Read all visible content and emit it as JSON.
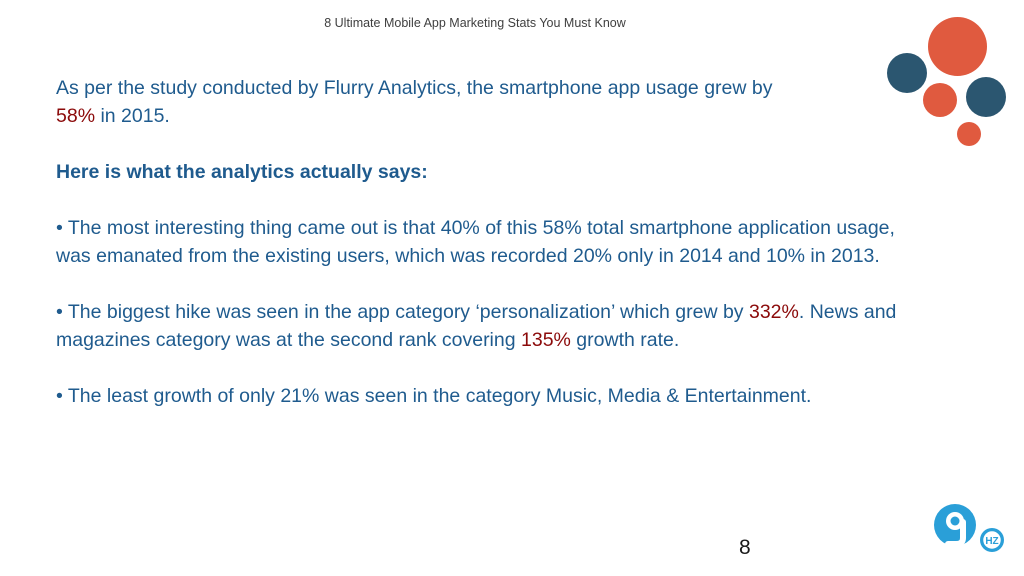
{
  "header": {
    "title": "8 Ultimate Mobile App Marketing Stats You Must Know"
  },
  "content": {
    "intro_part1": "As per the study conducted by Flurry Analytics, the smartphone app usage grew by",
    "intro_highlight": "58%",
    "intro_part2": " in 2015.",
    "heading": "Here is what the analytics actually says:",
    "bullet1": "• The most interesting thing came out is that 40% of this 58% total smartphone application usage, was emanated from the existing users, which was recorded 20% only in 2014 and 10% in 2013.",
    "bullet2_part1": "• The biggest hike was seen in the app category ‘personalization’ which grew by ",
    "bullet2_hl1": "332%",
    "bullet2_part2": ". News and magazines category was at the second rank covering ",
    "bullet2_hl2": "135%",
    "bullet2_part3": " growth rate.",
    "bullet3": "• The least growth of only 21% was seen in the category Music, Media & Entertainment."
  },
  "page_number": "8",
  "logo": {
    "text": "HZ"
  },
  "colors": {
    "text": "#1f5b8e",
    "highlight": "#8b0a0a",
    "orange": "#e05a3f",
    "navy": "#2b5670"
  }
}
